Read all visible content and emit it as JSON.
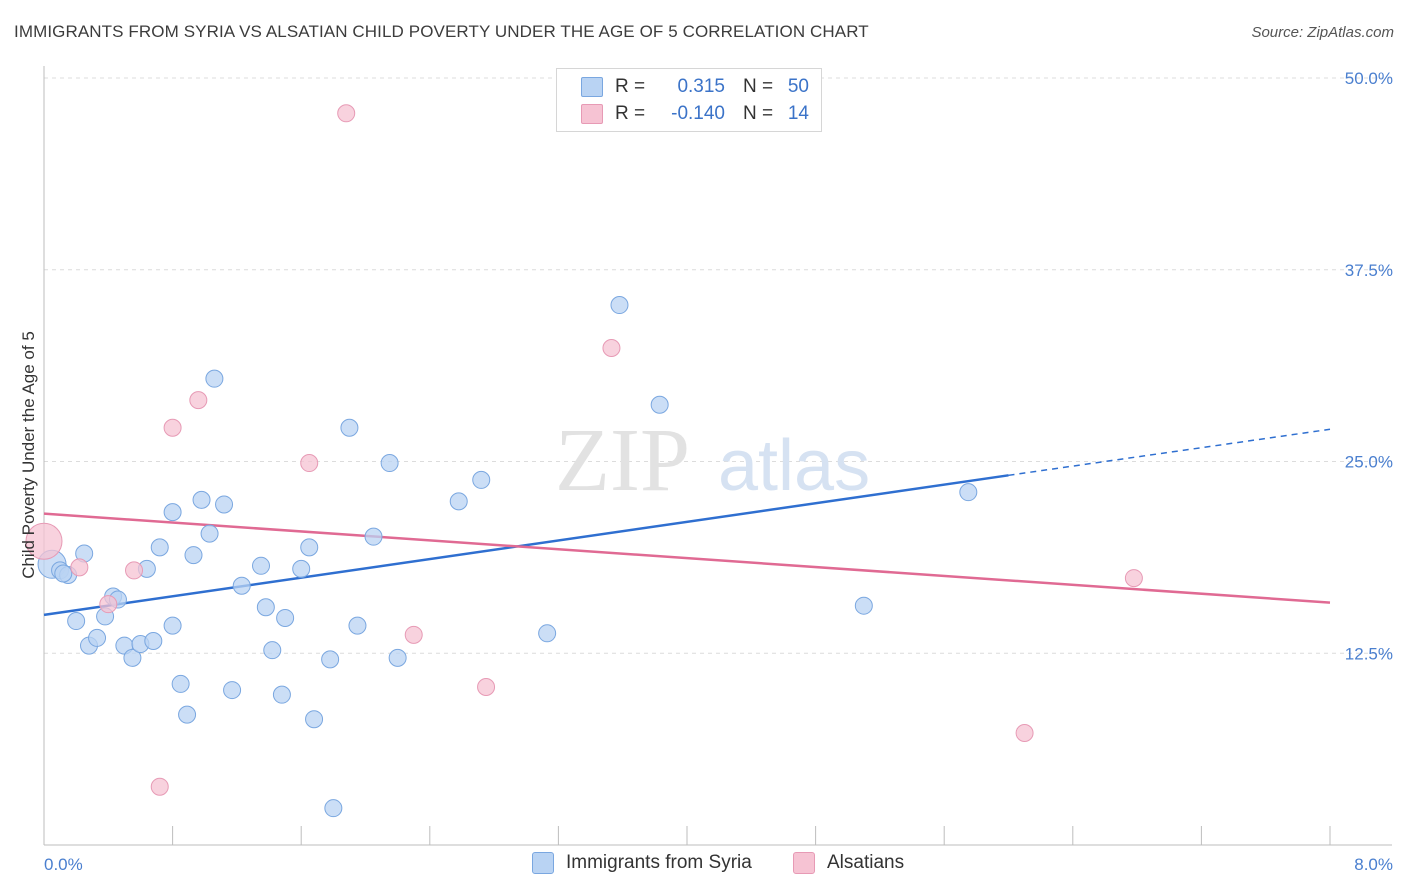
{
  "header": {
    "title": "IMMIGRANTS FROM SYRIA VS ALSATIAN CHILD POVERTY UNDER THE AGE OF 5 CORRELATION CHART",
    "source": "Source: ZipAtlas.com"
  },
  "watermark": {
    "zip": "ZIP",
    "atlas": "atlas"
  },
  "legend": {
    "rows": [
      {
        "r_label": "R =",
        "r_value": "0.315",
        "n_label": "N =",
        "n_value": "50"
      },
      {
        "r_label": "R =",
        "r_value": "-0.140",
        "n_label": "N =",
        "n_value": "14"
      }
    ]
  },
  "bottom_legend": {
    "series1": "Immigrants from Syria",
    "series2": "Alsatians"
  },
  "colors": {
    "blue_fill": "#b9d3f3",
    "blue_stroke": "#7aa7e0",
    "blue_line": "#2f6fd0",
    "pink_fill": "#f6c3d3",
    "pink_stroke": "#e79ab5",
    "pink_line": "#e06a93",
    "tick_text": "#4a7fcf",
    "grid": "#dcdcdc"
  },
  "chart_data": {
    "type": "scatter",
    "title": "IMMIGRANTS FROM SYRIA VS ALSATIAN CHILD POVERTY UNDER THE AGE OF 5 CORRELATION CHART",
    "xlabel": "",
    "ylabel": "Child Poverty Under the Age of 5",
    "xlim": [
      0,
      8
    ],
    "ylim": [
      0,
      50
    ],
    "x_tick_labels": [
      "0.0%",
      "8.0%"
    ],
    "y_ticks": [
      12.5,
      25.0,
      37.5,
      50.0
    ],
    "y_tick_labels": [
      "12.5%",
      "25.0%",
      "37.5%",
      "50.0%"
    ],
    "grid": true,
    "legend_position": "top-center",
    "series": [
      {
        "name": "Immigrants from Syria",
        "color": "#b9d3f3",
        "r": 0.315,
        "n": 50,
        "trend": {
          "x": [
            0,
            6.0
          ],
          "y": [
            15.0,
            24.1
          ],
          "dashed_to": [
            8.0,
            27.1
          ]
        },
        "points": [
          [
            0.05,
            18.3
          ],
          [
            0.1,
            17.9
          ],
          [
            0.15,
            17.6
          ],
          [
            0.25,
            19.0
          ],
          [
            0.2,
            14.6
          ],
          [
            0.28,
            13.0
          ],
          [
            0.33,
            13.5
          ],
          [
            0.38,
            14.9
          ],
          [
            0.43,
            16.2
          ],
          [
            0.46,
            16.0
          ],
          [
            0.5,
            13.0
          ],
          [
            0.55,
            12.2
          ],
          [
            0.6,
            13.1
          ],
          [
            0.64,
            18.0
          ],
          [
            0.68,
            13.3
          ],
          [
            0.72,
            19.4
          ],
          [
            0.8,
            14.3
          ],
          [
            0.8,
            21.7
          ],
          [
            0.85,
            10.5
          ],
          [
            0.89,
            8.5
          ],
          [
            0.93,
            18.9
          ],
          [
            0.98,
            22.5
          ],
          [
            1.03,
            20.3
          ],
          [
            1.06,
            30.4
          ],
          [
            1.12,
            22.2
          ],
          [
            1.17,
            10.1
          ],
          [
            1.23,
            16.9
          ],
          [
            1.35,
            18.2
          ],
          [
            1.38,
            15.5
          ],
          [
            1.42,
            12.7
          ],
          [
            1.48,
            9.8
          ],
          [
            1.5,
            14.8
          ],
          [
            1.6,
            18.0
          ],
          [
            1.65,
            19.4
          ],
          [
            1.68,
            8.2
          ],
          [
            1.78,
            12.1
          ],
          [
            1.8,
            2.4
          ],
          [
            1.9,
            27.2
          ],
          [
            1.95,
            14.3
          ],
          [
            2.05,
            20.1
          ],
          [
            2.15,
            24.9
          ],
          [
            2.2,
            12.2
          ],
          [
            2.58,
            22.4
          ],
          [
            2.72,
            23.8
          ],
          [
            3.13,
            13.8
          ],
          [
            3.58,
            35.2
          ],
          [
            3.83,
            28.7
          ],
          [
            5.1,
            15.6
          ],
          [
            5.75,
            23.0
          ],
          [
            0.12,
            17.7
          ]
        ]
      },
      {
        "name": "Alsatians",
        "color": "#f6c3d3",
        "r": -0.14,
        "n": 14,
        "trend": {
          "x": [
            0,
            8.0
          ],
          "y": [
            21.6,
            15.8
          ]
        },
        "points": [
          [
            0.0,
            19.8
          ],
          [
            0.22,
            18.1
          ],
          [
            0.4,
            15.7
          ],
          [
            0.56,
            17.9
          ],
          [
            0.72,
            3.8
          ],
          [
            0.8,
            27.2
          ],
          [
            0.96,
            29.0
          ],
          [
            1.65,
            24.9
          ],
          [
            1.88,
            47.7
          ],
          [
            2.3,
            13.7
          ],
          [
            2.75,
            10.3
          ],
          [
            3.53,
            32.4
          ],
          [
            6.1,
            7.3
          ],
          [
            6.78,
            17.4
          ]
        ]
      }
    ]
  }
}
